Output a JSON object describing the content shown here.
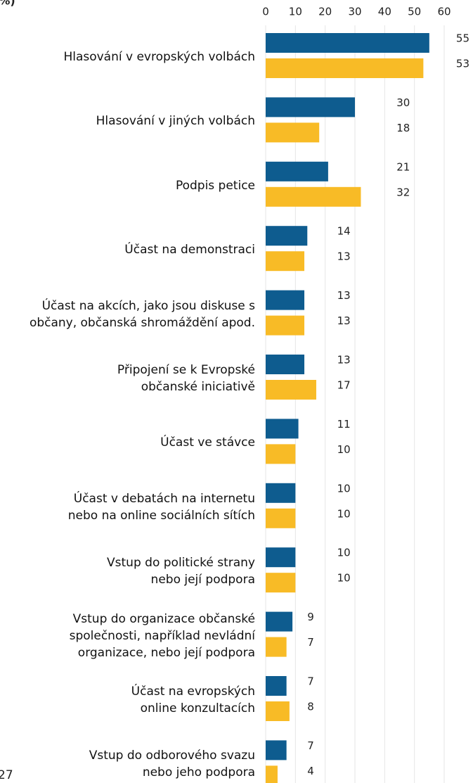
{
  "chart_data": {
    "type": "hbar",
    "title": "(%)",
    "annotation": "27",
    "categories": [
      "Hlasování v evropských volbách",
      "Hlasování v jiných volbách",
      "Podpis petice",
      "Účast na demonstraci",
      "Účast na akcích, jako jsou diskuse s\nobčany, občanská shromáždění apod.",
      "Připojení se k Evropské\nobčanské iniciativě",
      "Účast ve stávce",
      "Účast v debatách na internetu\nnebo na online sociálních sítích",
      "Vstup do politické strany\nnebo její podpora",
      "Vstup do organizace občanské\nspolečnosti, například nevládní\norganizace, nebo její podpora",
      "Účast na evropských\nonline konzultacích",
      "Vstup do odborového svazu\nnebo jeho podpora"
    ],
    "series": [
      {
        "color": "#0e5c8f",
        "values": [
          55,
          30,
          21,
          14,
          13,
          13,
          11,
          10,
          10,
          9,
          7,
          7
        ]
      },
      {
        "color": "#f8bb26",
        "values": [
          53,
          18,
          32,
          13,
          13,
          17,
          10,
          10,
          10,
          7,
          8,
          4
        ]
      }
    ],
    "xlim": [
      0,
      60
    ],
    "xticks": [
      0,
      10,
      20,
      30,
      40,
      50,
      60
    ],
    "grid": true
  }
}
